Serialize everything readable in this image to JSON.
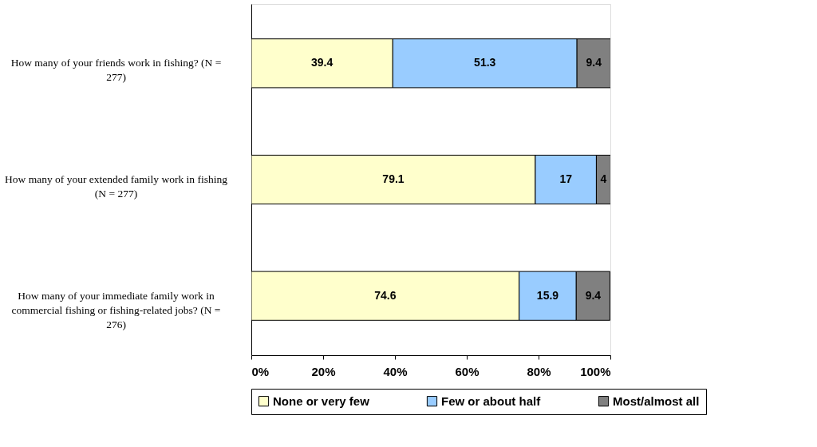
{
  "chart_data": {
    "type": "bar",
    "orientation": "horizontal",
    "stacked": true,
    "data_labels": true,
    "grid": false,
    "legend": "bottom",
    "categories": [
      "How many of your friends work in fishing? (N = 277)",
      "How many of your extended family work in fishing (N = 277)",
      "How many of your immediate family work in commercial fishing or fishing-related jobs? (N = 276)"
    ],
    "series": [
      {
        "name": "None or very few",
        "color": "#ffffcc",
        "values": [
          39.4,
          79.1,
          74.6
        ]
      },
      {
        "name": "Few or about half",
        "color": "#99ccff",
        "values": [
          51.3,
          17,
          15.9
        ]
      },
      {
        "name": "Most/almost all",
        "color": "#808080",
        "values": [
          9.4,
          4,
          9.4
        ]
      }
    ],
    "xlim": [
      0,
      100
    ],
    "xticks": [
      {
        "value": 0,
        "label": "0%"
      },
      {
        "value": 20,
        "label": "20%"
      },
      {
        "value": 40,
        "label": "40%"
      },
      {
        "value": 60,
        "label": "60%"
      },
      {
        "value": 80,
        "label": "80%"
      },
      {
        "value": 100,
        "label": "100%"
      }
    ]
  }
}
